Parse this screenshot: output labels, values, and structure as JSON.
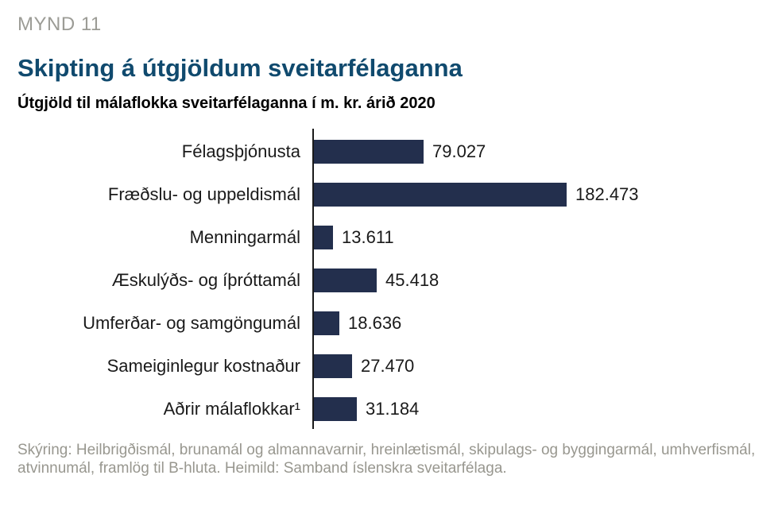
{
  "figure_label": "MYND 11",
  "title": "Skipting á útgjöldum sveitarfélaganna",
  "subtitle": "Útgjöld til málaflokka sveitarfélaganna í m. kr. árið 2020",
  "footnote": {
    "line1": "Skýring: Heilbrigðismál, brunamál og almannavarnir, hreinlætismál, skipulags- og byggingarmál, umhverfismál,",
    "line2": "atvinnumál, framlög til B-hluta. Heimild: Samband íslenskra sveitarfélaga."
  },
  "colors": {
    "bar": "#232F4D",
    "title": "#104A6E",
    "figure_label": "#9C9C96",
    "footnote": "#98978F",
    "axis": "#1A1A1A"
  },
  "chart_data": {
    "type": "bar",
    "orientation": "horizontal",
    "title": "Skipting á útgjöldum sveitarfélaganna",
    "subtitle": "Útgjöld til málaflokka sveitarfélaganna í m. kr. árið 2020",
    "unit": "m. kr.",
    "categories": [
      "Félagsþjónusta",
      "Fræðslu- og uppeldismál",
      "Menningarmál",
      "Æskulýðs- og íþróttamál",
      "Umferðar- og samgöngumál",
      "Sameiginlegur kostnaður",
      "Aðrir málaflokkar¹"
    ],
    "values": [
      79027,
      182473,
      13611,
      45418,
      18636,
      27470,
      31184
    ],
    "value_labels": [
      "79.027",
      "182.473",
      "13.611",
      "45.418",
      "18.636",
      "27.470",
      "31.184"
    ],
    "xlim": [
      0,
      182473
    ],
    "grid": false,
    "legend": false
  }
}
